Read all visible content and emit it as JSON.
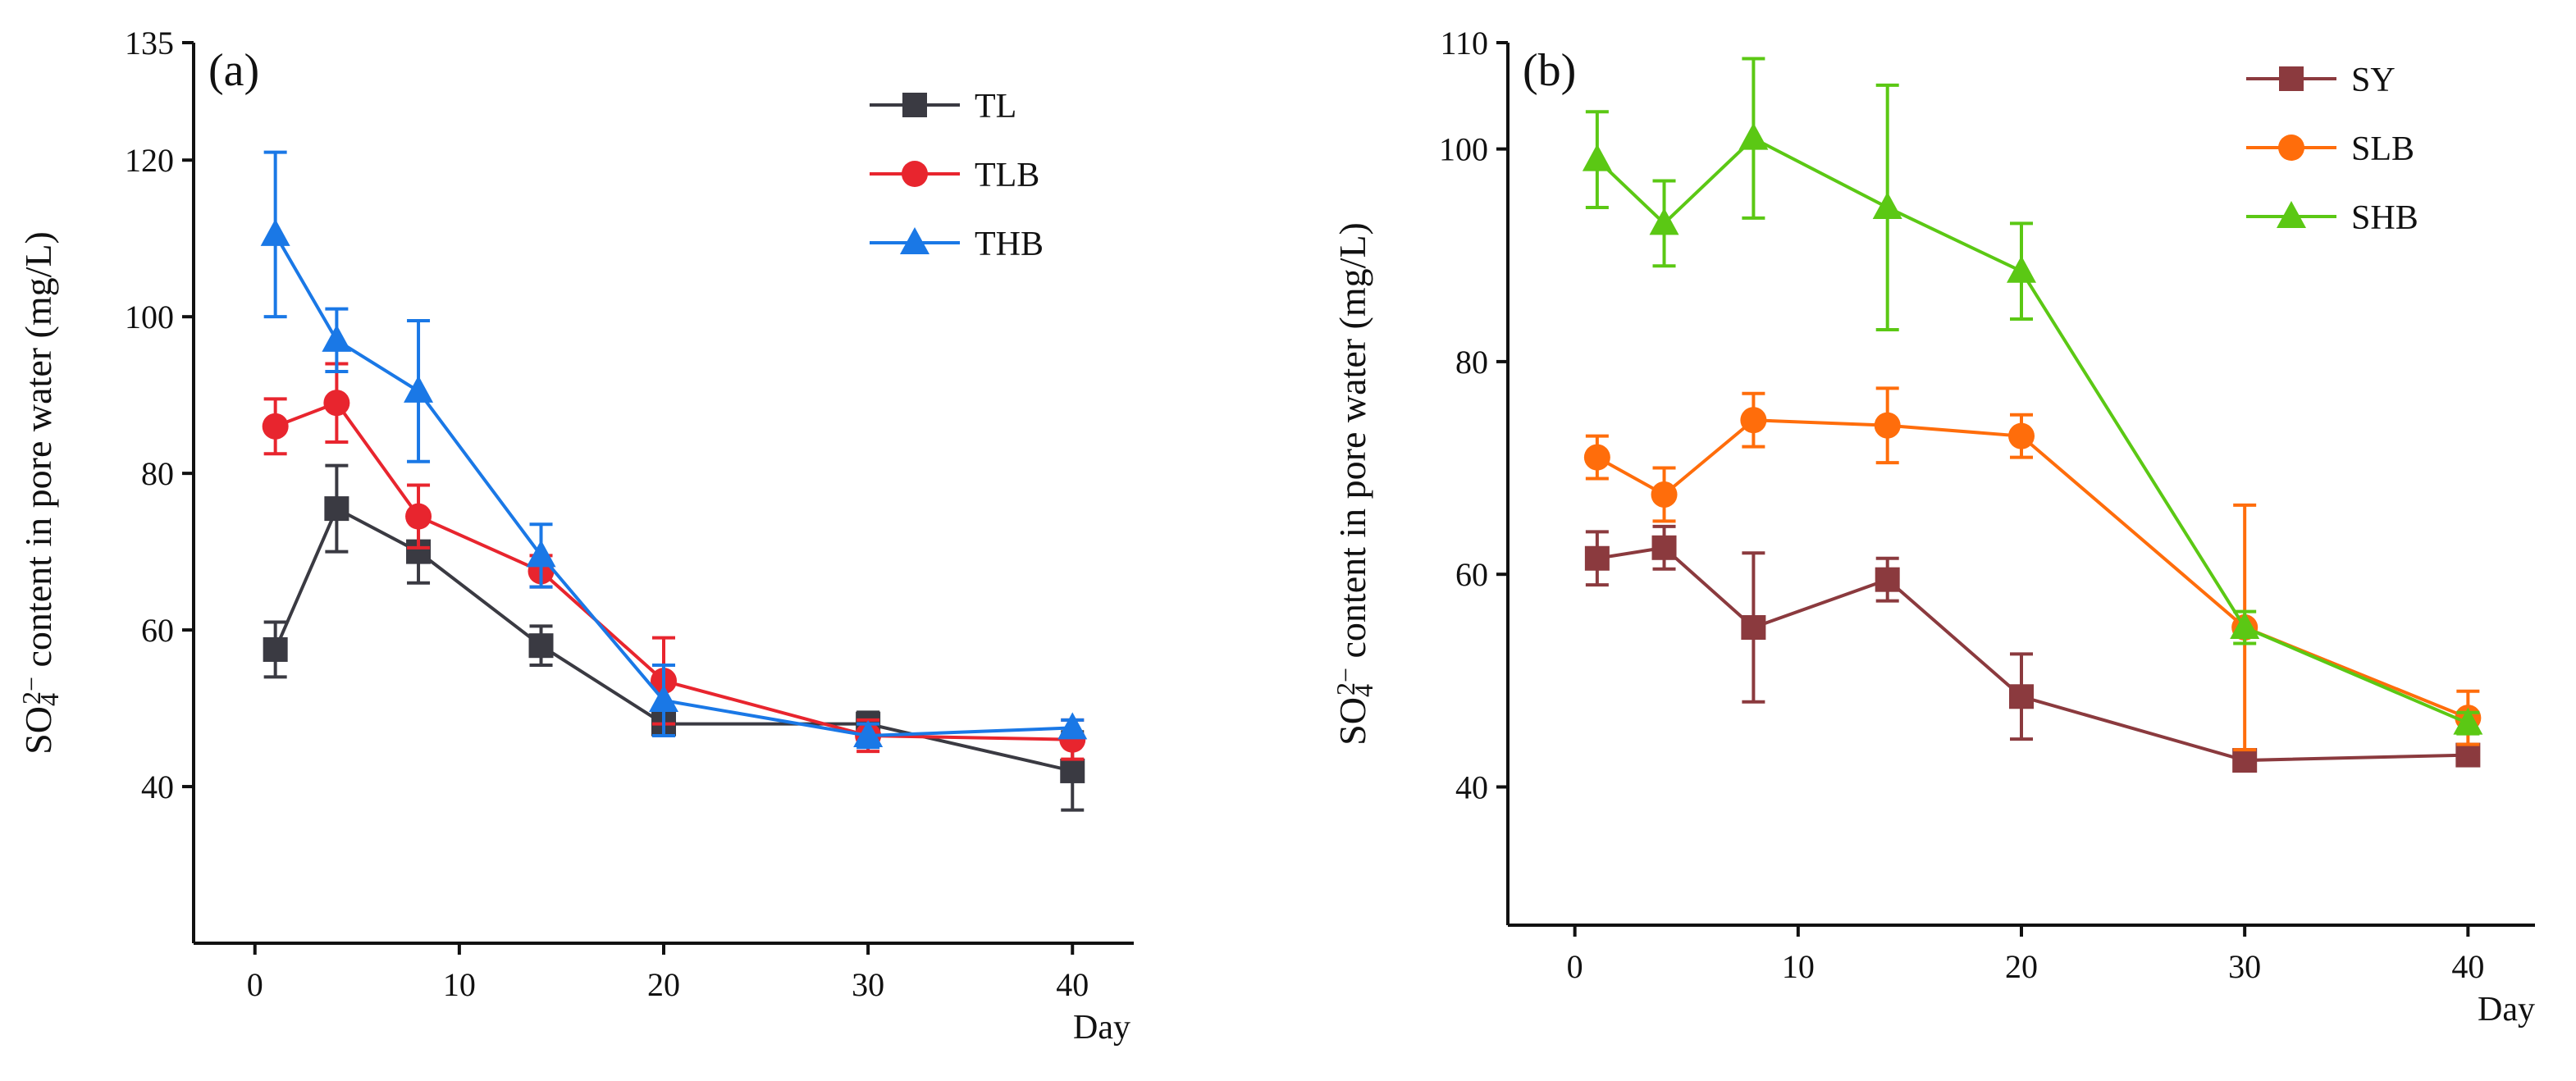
{
  "chart_data": [
    {
      "type": "line",
      "panel_label": "(a)",
      "x": [
        1,
        4,
        8,
        14,
        20,
        30,
        40
      ],
      "xlim": [
        -3,
        43
      ],
      "xticks": [
        0,
        10,
        20,
        30,
        40
      ],
      "xtick_labels": [
        "0",
        "10",
        "20",
        "30",
        "40"
      ],
      "xlabel": "Day",
      "ylim": [
        20,
        135
      ],
      "yticks": [
        40,
        60,
        80,
        100,
        120,
        135
      ],
      "ytick_labels": [
        "40",
        "60",
        "80",
        "100",
        "120",
        "135"
      ],
      "ylabel_parts": [
        "SO",
        "4",
        "2−",
        " content in pore water (mg/L)"
      ],
      "legend_position": "top-right",
      "grid": false,
      "series": [
        {
          "name": "TL",
          "marker": "square",
          "color": "#3a3a42",
          "values": [
            57.5,
            75.5,
            70.0,
            58.0,
            48.0,
            48.0,
            42.0
          ],
          "errors": [
            3.5,
            5.5,
            4.0,
            2.5,
            1.5,
            1.5,
            5.0
          ]
        },
        {
          "name": "TLB",
          "marker": "circle",
          "color": "#e8252e",
          "values": [
            86.0,
            89.0,
            74.5,
            67.5,
            53.5,
            46.5,
            46.0
          ],
          "errors": [
            3.5,
            5.0,
            4.0,
            2.0,
            5.5,
            2.0,
            2.5
          ]
        },
        {
          "name": "THB",
          "marker": "triangle",
          "color": "#1a78e6",
          "values": [
            110.5,
            97.0,
            90.5,
            69.5,
            51.0,
            46.5,
            47.5
          ],
          "errors": [
            10.5,
            4.0,
            9.0,
            4.0,
            4.5,
            1.5,
            1.0
          ]
        }
      ]
    },
    {
      "type": "line",
      "panel_label": "(b)",
      "x": [
        1,
        4,
        8,
        14,
        20,
        30,
        40
      ],
      "xlim": [
        -3,
        43
      ],
      "xticks": [
        0,
        10,
        20,
        30,
        40
      ],
      "xtick_labels": [
        "0",
        "10",
        "20",
        "30",
        "40"
      ],
      "xlabel": "Day",
      "ylim": [
        27,
        110
      ],
      "yticks": [
        40,
        60,
        80,
        100,
        110
      ],
      "ytick_labels": [
        "40",
        "60",
        "80",
        "100",
        "110"
      ],
      "ylabel_parts": [
        "SO",
        "4",
        "2−",
        " content in pore water (mg/L)"
      ],
      "legend_position": "top-right",
      "grid": false,
      "series": [
        {
          "name": "SY",
          "marker": "square",
          "color": "#8b3a3e",
          "values": [
            61.5,
            62.5,
            55.0,
            59.5,
            48.5,
            42.5,
            43.0
          ],
          "errors": [
            2.5,
            2.0,
            7.0,
            2.0,
            4.0,
            1.0,
            0.5
          ]
        },
        {
          "name": "SLB",
          "marker": "circle",
          "color": "#ff6d0b",
          "values": [
            71.0,
            67.5,
            74.5,
            74.0,
            73.0,
            55.0,
            46.5
          ],
          "errors": [
            2.0,
            2.5,
            2.5,
            3.5,
            2.0,
            11.5,
            2.5
          ]
        },
        {
          "name": "SHB",
          "marker": "triangle",
          "color": "#5bc814",
          "values": [
            99.0,
            93.0,
            101.0,
            94.5,
            88.5,
            55.0,
            46.0
          ],
          "errors": [
            4.5,
            4.0,
            7.5,
            11.5,
            4.5,
            1.5,
            1.0
          ]
        }
      ]
    }
  ]
}
